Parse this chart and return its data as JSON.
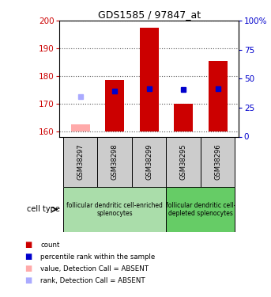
{
  "title": "GDS1585 / 97847_at",
  "samples": [
    "GSM38297",
    "GSM38298",
    "GSM38299",
    "GSM38295",
    "GSM38296"
  ],
  "bar_bottoms": [
    160,
    160,
    160,
    160,
    160
  ],
  "bar_tops": [
    162.5,
    178.5,
    197.5,
    170.0,
    185.5
  ],
  "bar_colors": [
    "#ffaaaa",
    "#cc0000",
    "#cc0000",
    "#cc0000",
    "#cc0000"
  ],
  "bar_absent": [
    true,
    false,
    false,
    false,
    false
  ],
  "rank_values": [
    172.5,
    174.5,
    175.5,
    175.0,
    175.5
  ],
  "rank_colors": [
    "#aaaaff",
    "#0000cc",
    "#0000cc",
    "#0000cc",
    "#0000cc"
  ],
  "rank_absent": [
    true,
    false,
    false,
    false,
    false
  ],
  "ylim_left": [
    158,
    200
  ],
  "ylim_right": [
    0,
    100
  ],
  "yticks_left": [
    160,
    170,
    180,
    190,
    200
  ],
  "yticks_right": [
    0,
    25,
    50,
    75,
    100
  ],
  "ytick_labels_right": [
    "0",
    "25",
    "50",
    "75",
    "100%"
  ],
  "ylabel_left_color": "#cc0000",
  "ylabel_right_color": "#0000cc",
  "group1_label": "follicular dendritic cell-enriched\nsplenocytes",
  "group2_label": "follicular dendritic cell-\ndepleted splenocytes",
  "group_label_prefix": "cell type",
  "group1_color": "#aaddaa",
  "group2_color": "#66cc66",
  "sample_box_color": "#cccccc",
  "legend_items": [
    {
      "label": "count",
      "color": "#cc0000"
    },
    {
      "label": "percentile rank within the sample",
      "color": "#0000cc"
    },
    {
      "label": "value, Detection Call = ABSENT",
      "color": "#ffaaaa"
    },
    {
      "label": "rank, Detection Call = ABSENT",
      "color": "#aaaaff"
    }
  ],
  "bar_width": 0.55,
  "rank_marker_size": 5,
  "dotted_line_color": "#555555",
  "background_color": "#ffffff"
}
